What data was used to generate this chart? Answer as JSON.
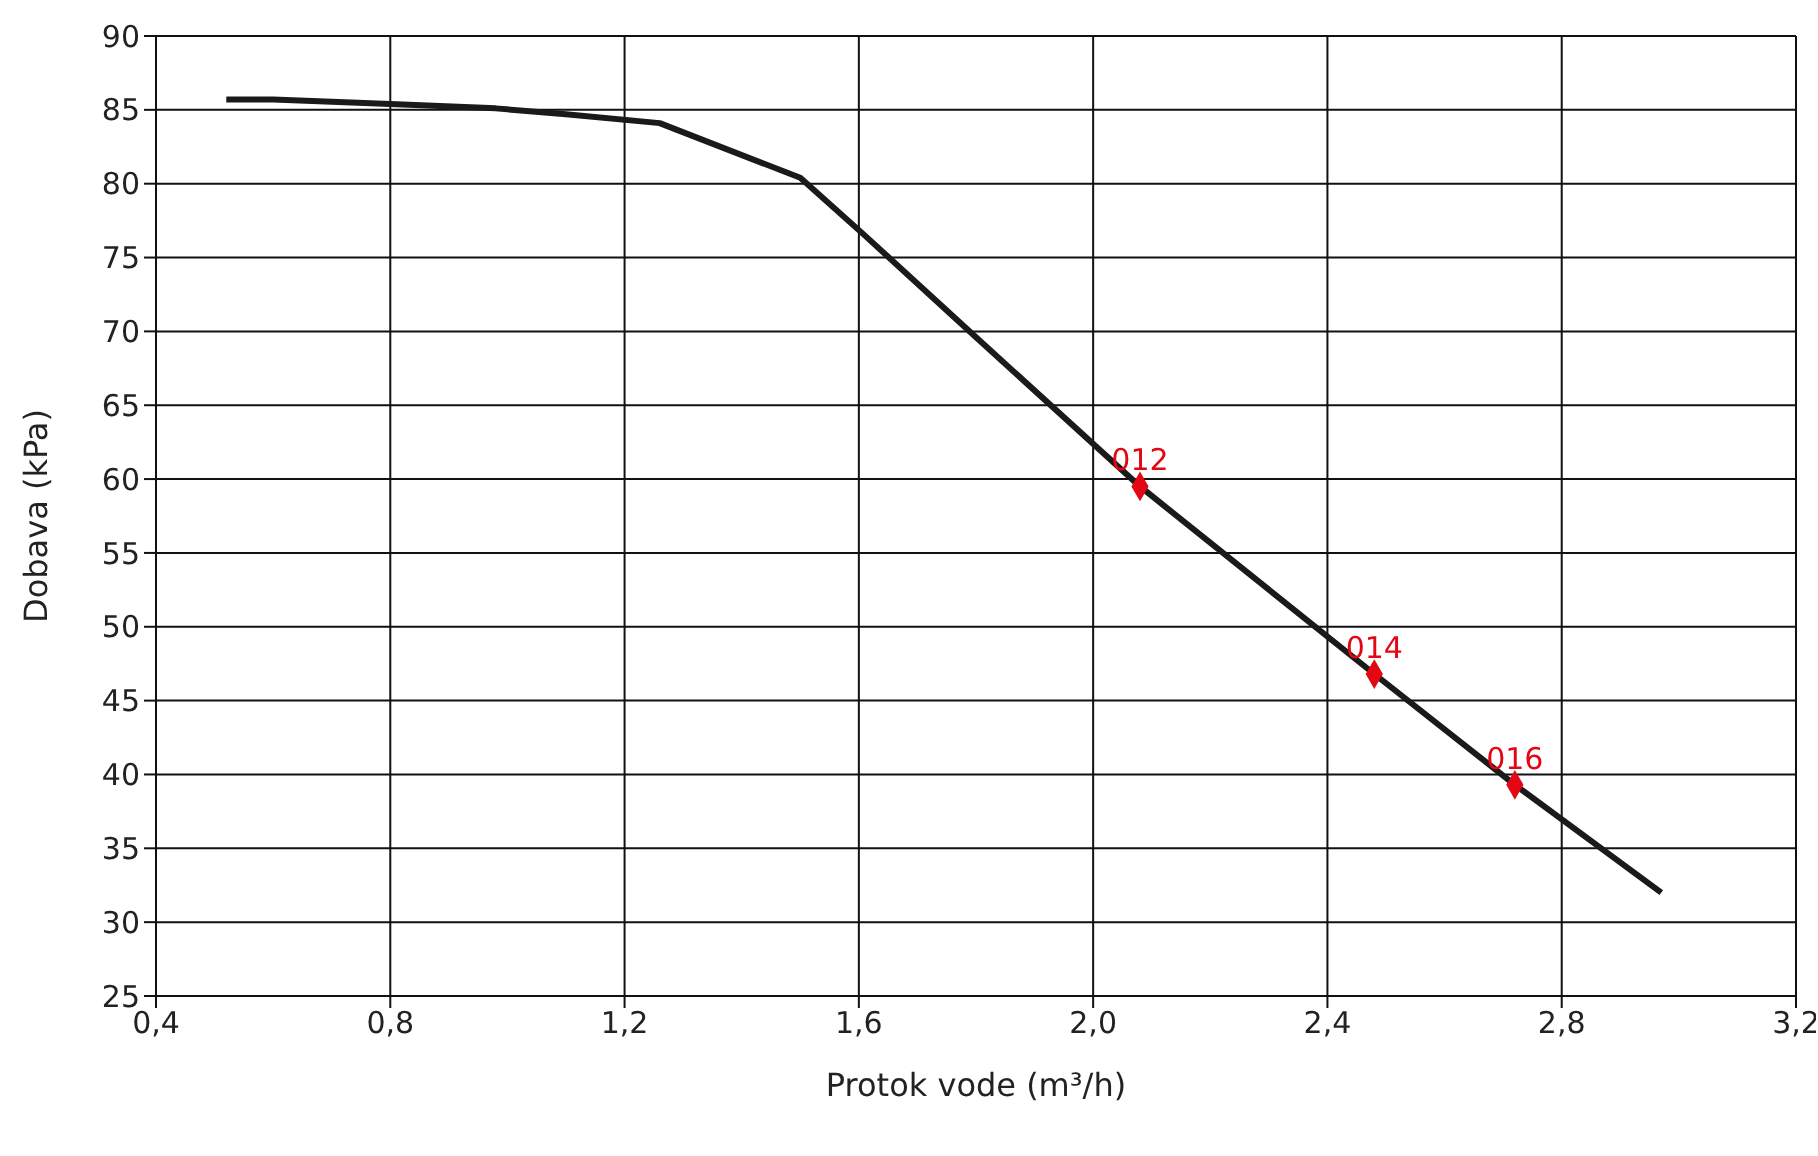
{
  "chart_data": {
    "type": "line",
    "xlabel": "Protok vode (m³/h)",
    "ylabel": "Dobava (kPa)",
    "xlim": [
      0.4,
      3.2
    ],
    "xticks": [
      {
        "value": 0.4,
        "label": "0,4"
      },
      {
        "value": 0.8,
        "label": "0,8"
      },
      {
        "value": 1.2,
        "label": "1,2"
      },
      {
        "value": 1.6,
        "label": "1,6"
      },
      {
        "value": 2.0,
        "label": "2,0"
      },
      {
        "value": 2.4,
        "label": "2,4"
      },
      {
        "value": 2.8,
        "label": "2,8"
      },
      {
        "value": 3.2,
        "label": "3,2"
      }
    ],
    "ylim": [
      25,
      90
    ],
    "yticks": [
      25,
      30,
      35,
      40,
      45,
      50,
      55,
      60,
      65,
      70,
      75,
      80,
      85,
      90
    ],
    "grid": true,
    "series": [
      {
        "color": "#1a1a1a",
        "marker": "none",
        "line_style": "solid",
        "x": [
          0.52,
          0.6,
          0.8,
          0.98,
          1.1,
          1.26,
          1.5,
          1.61,
          1.8,
          2.08,
          2.48,
          2.72,
          2.97
        ],
        "values": [
          85.7,
          85.7,
          85.4,
          85.1,
          84.7,
          84.1,
          80.4,
          76.5,
          69.6,
          59.5,
          46.8,
          39.3,
          32.0
        ]
      },
      {
        "type": "scatter",
        "color": "#e30613",
        "marker": "diamond",
        "x": [
          2.08,
          2.48,
          2.72
        ],
        "values": [
          59.5,
          46.8,
          39.3
        ]
      }
    ],
    "annotations": [
      {
        "text": "012",
        "x": 2.08,
        "y": 59.5
      },
      {
        "text": "014",
        "x": 2.48,
        "y": 46.8
      },
      {
        "text": "016",
        "x": 2.72,
        "y": 39.3
      }
    ]
  }
}
